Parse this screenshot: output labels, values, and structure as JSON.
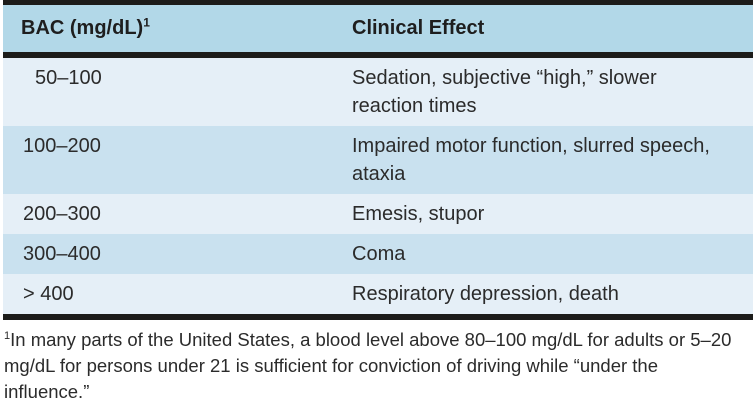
{
  "colors": {
    "header_bg": "#b2d8e8",
    "row_light": "#e5eff7",
    "row_dark": "#c9e1ef",
    "rule": "#1c1c1a",
    "text": "#2b2b2b"
  },
  "table": {
    "header": {
      "bac_label": "BAC (mg/dL)",
      "bac_superscript": "1",
      "effect_label": "Clinical Effect"
    },
    "rows": [
      {
        "bac": "50–100",
        "effect": "Sedation, subjective “high,” slower reaction times"
      },
      {
        "bac": "100–200",
        "effect": "Impaired motor function, slurred speech, ataxia"
      },
      {
        "bac": "200–300",
        "effect": "Emesis, stupor"
      },
      {
        "bac": "300–400",
        "effect": "Coma"
      },
      {
        "bac": "> 400",
        "effect": "Respiratory depression, death"
      }
    ],
    "footnote": {
      "marker": "1",
      "text": "In many parts of the United States, a blood level above 80–100 mg/dL for adults or 5–20 mg/dL for persons under 21 is sufficient for conviction of driving while “under the influence.”"
    }
  }
}
